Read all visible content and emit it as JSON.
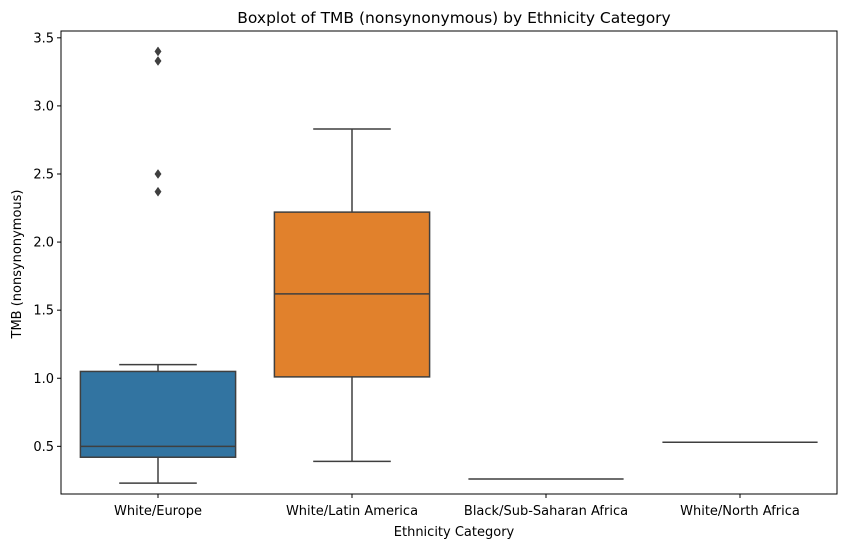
{
  "chart_data": {
    "type": "boxplot",
    "title": "Boxplot of TMB (nonsynonymous) by Ethnicity Category",
    "xlabel": "Ethnicity Category",
    "ylabel": "TMB (nonsynonymous)",
    "ylim": [
      0.15,
      3.55
    ],
    "yticks": [
      "0.5",
      "1.0",
      "1.5",
      "2.0",
      "2.5",
      "3.0",
      "3.5"
    ],
    "grid": false,
    "categories": [
      "White/Europe",
      "White/Latin America",
      "Black/Sub-Saharan Africa",
      "White/North Africa"
    ],
    "boxes": [
      {
        "category": "White/Europe",
        "color": "#3274a1",
        "whisker_low": 0.23,
        "q1": 0.42,
        "median": 0.5,
        "q3": 1.05,
        "whisker_high": 1.1,
        "outliers": [
          2.37,
          2.5,
          3.33,
          3.4
        ]
      },
      {
        "category": "White/Latin America",
        "color": "#e1812c",
        "whisker_low": 0.39,
        "q1": 1.01,
        "median": 1.62,
        "q3": 2.22,
        "whisker_high": 2.83,
        "outliers": []
      },
      {
        "category": "Black/Sub-Saharan Africa",
        "color": "#3a923a",
        "whisker_low": 0.26,
        "q1": 0.26,
        "median": 0.26,
        "q3": 0.26,
        "whisker_high": 0.26,
        "outliers": []
      },
      {
        "category": "White/North Africa",
        "color": "#c03d3e",
        "whisker_low": 0.53,
        "q1": 0.53,
        "median": 0.53,
        "q3": 0.53,
        "whisker_high": 0.53,
        "outliers": []
      }
    ]
  }
}
